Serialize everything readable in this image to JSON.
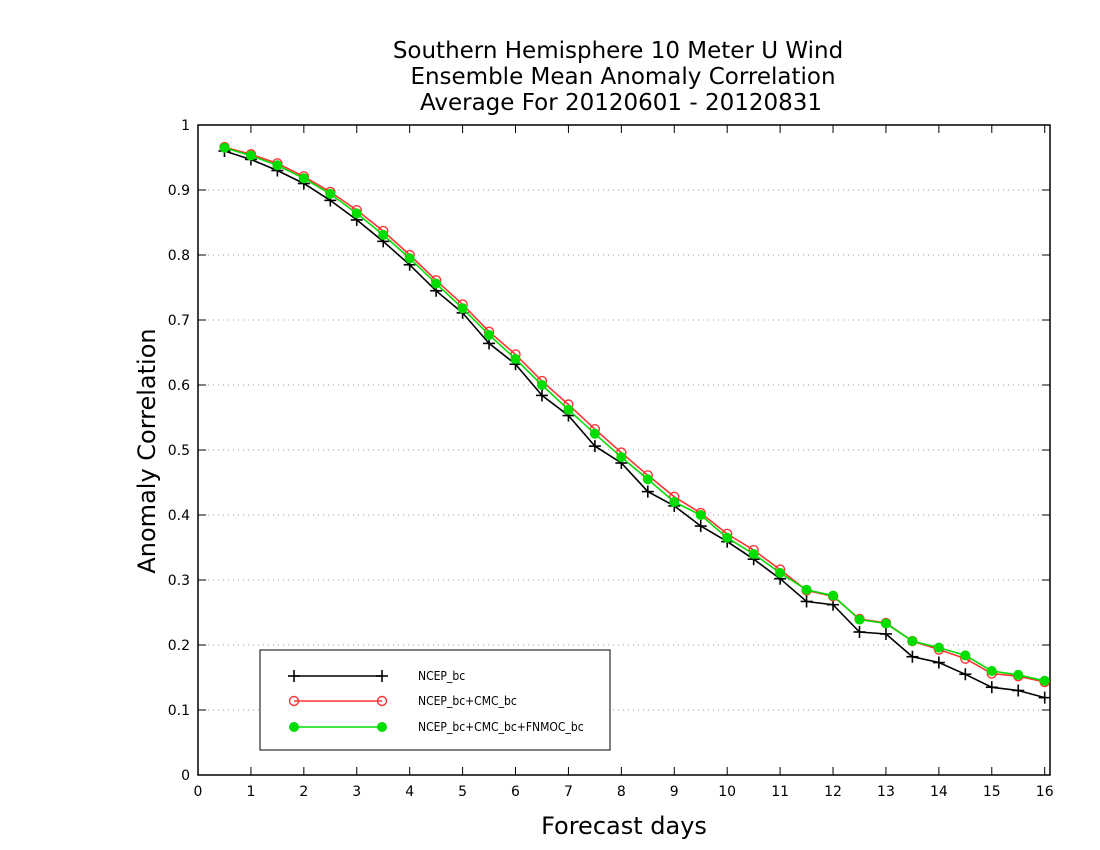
{
  "chart_data": {
    "type": "line",
    "title": [
      "Southern Hemisphere 10 Meter U Wind",
      "Ensemble Mean Anomaly Correlation",
      "Average For 20120601 - 20120831"
    ],
    "xlabel": "Forecast days",
    "ylabel": "Anomaly Correlation",
    "xlim": [
      0,
      16.1
    ],
    "ylim": [
      0,
      1
    ],
    "x_ticks": [
      "0",
      "1",
      "2",
      "3",
      "4",
      "5",
      "6",
      "7",
      "8",
      "9",
      "10",
      "11",
      "12",
      "13",
      "14",
      "15",
      "16"
    ],
    "y_ticks": [
      "0",
      "0.1",
      "0.2",
      "0.3",
      "0.4",
      "0.5",
      "0.6",
      "0.7",
      "0.8",
      "0.9",
      "1"
    ],
    "grid": "horizontal-dotted",
    "legend_position": "bottom-left",
    "x": [
      0.5,
      1,
      1.5,
      2,
      2.5,
      3,
      3.5,
      4,
      4.5,
      5,
      5.5,
      6,
      6.5,
      7,
      7.5,
      8,
      8.5,
      9,
      9.5,
      10,
      10.5,
      11,
      11.5,
      12,
      12.5,
      13,
      13.5,
      14,
      14.5,
      15,
      15.5,
      16
    ],
    "series": [
      {
        "name": "NCEP_bc",
        "color": "#000000",
        "marker": "plus",
        "values": [
          0.96,
          0.947,
          0.93,
          0.91,
          0.884,
          0.854,
          0.821,
          0.785,
          0.745,
          0.711,
          0.664,
          0.632,
          0.584,
          0.553,
          0.506,
          0.48,
          0.436,
          0.414,
          0.383,
          0.359,
          0.332,
          0.302,
          0.267,
          0.262,
          0.22,
          0.217,
          0.182,
          0.173,
          0.155,
          0.135,
          0.13,
          0.119
        ]
      },
      {
        "name": "NCEP_bc+CMC_bc",
        "color": "#ff3333",
        "marker": "open-circle",
        "values": [
          0.966,
          0.955,
          0.941,
          0.921,
          0.897,
          0.869,
          0.837,
          0.8,
          0.761,
          0.724,
          0.682,
          0.647,
          0.606,
          0.57,
          0.532,
          0.496,
          0.461,
          0.428,
          0.403,
          0.371,
          0.346,
          0.316,
          0.284,
          0.275,
          0.24,
          0.234,
          0.206,
          0.193,
          0.179,
          0.156,
          0.152,
          0.143
        ]
      },
      {
        "name": "NCEP_bc+CMC_bc+FNMOC_bc",
        "color": "#00dd00",
        "marker": "filled-circle",
        "values": [
          0.965,
          0.953,
          0.938,
          0.918,
          0.894,
          0.864,
          0.831,
          0.795,
          0.756,
          0.718,
          0.677,
          0.64,
          0.6,
          0.562,
          0.525,
          0.489,
          0.455,
          0.42,
          0.4,
          0.365,
          0.34,
          0.311,
          0.285,
          0.276,
          0.239,
          0.233,
          0.206,
          0.196,
          0.184,
          0.16,
          0.154,
          0.145
        ]
      }
    ]
  }
}
